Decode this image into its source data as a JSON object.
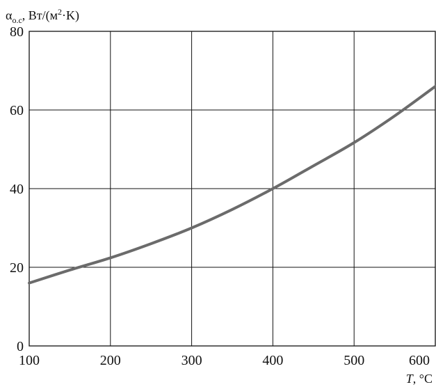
{
  "chart_data": {
    "type": "line",
    "title": "",
    "ylabel_symbol": "α",
    "ylabel_subscript": "о.с",
    "ylabel_units_pre": ", Вт/(м",
    "ylabel_units_sup": "2",
    "ylabel_units_post": "·K)",
    "xlabel_symbol": "T",
    "xlabel_units": ", °C",
    "xlim": [
      100,
      600
    ],
    "ylim": [
      0,
      80
    ],
    "grid": true,
    "x_ticks": [
      "100",
      "200",
      "300",
      "400",
      "500",
      "600"
    ],
    "y_ticks": [
      "0",
      "20",
      "40",
      "60",
      "80"
    ],
    "series": [
      {
        "color": "#6b6b6b",
        "x": [
          100,
          150,
          200,
          250,
          300,
          350,
          400,
          450,
          500,
          550,
          600
        ],
        "y": [
          16.0,
          19.3,
          22.4,
          26.0,
          30.0,
          34.7,
          40.0,
          45.8,
          51.7,
          58.5,
          66.0
        ]
      }
    ]
  }
}
